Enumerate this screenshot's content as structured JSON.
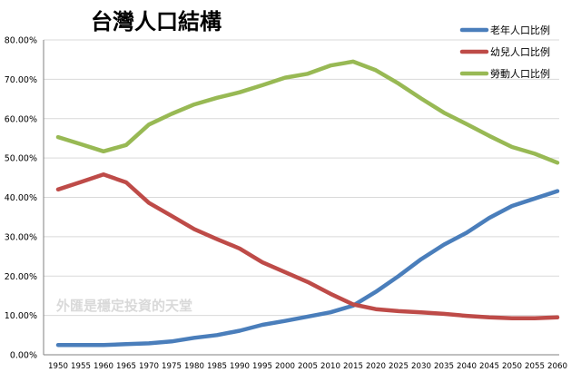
{
  "chart_data": {
    "type": "line",
    "title": "台灣人口結構",
    "watermark": "外匯是穩定投資的天堂",
    "xlabel": "",
    "ylabel": "",
    "x": [
      "1950",
      "1955",
      "1960",
      "1965",
      "1970",
      "1975",
      "1980",
      "1985",
      "1990",
      "1995",
      "2000",
      "2005",
      "2010",
      "2015",
      "2020",
      "2025",
      "2030",
      "2035",
      "2040",
      "2045",
      "2050",
      "2055",
      "2060"
    ],
    "yticks": [
      "0.00%",
      "10.00%",
      "20.00%",
      "30.00%",
      "40.00%",
      "50.00%",
      "60.00%",
      "70.00%",
      "80.00%"
    ],
    "ylim": [
      0,
      80
    ],
    "grid": true,
    "legend_position": "top-right",
    "series": [
      {
        "name": "老年人口比例",
        "color": "#4a7ebb",
        "values": [
          2.5,
          2.5,
          2.5,
          2.7,
          2.9,
          3.4,
          4.3,
          5.0,
          6.1,
          7.6,
          8.6,
          9.7,
          10.8,
          12.5,
          16.0,
          20.0,
          24.3,
          28.0,
          31.0,
          34.8,
          37.8,
          39.7,
          41.6
        ]
      },
      {
        "name": "幼兒人口比例",
        "color": "#be4b48",
        "values": [
          42.0,
          43.9,
          45.8,
          43.8,
          38.6,
          35.3,
          31.9,
          29.4,
          27.0,
          23.5,
          21.0,
          18.5,
          15.5,
          12.8,
          11.6,
          11.1,
          10.8,
          10.4,
          9.9,
          9.5,
          9.3,
          9.3,
          9.5
        ]
      },
      {
        "name": "勞動人口比例",
        "color": "#98b954",
        "values": [
          55.3,
          53.5,
          51.7,
          53.3,
          58.5,
          61.2,
          63.6,
          65.3,
          66.7,
          68.5,
          70.4,
          71.4,
          73.5,
          74.5,
          72.3,
          68.9,
          65.1,
          61.5,
          58.6,
          55.6,
          52.8,
          51.1,
          48.8
        ]
      }
    ]
  }
}
